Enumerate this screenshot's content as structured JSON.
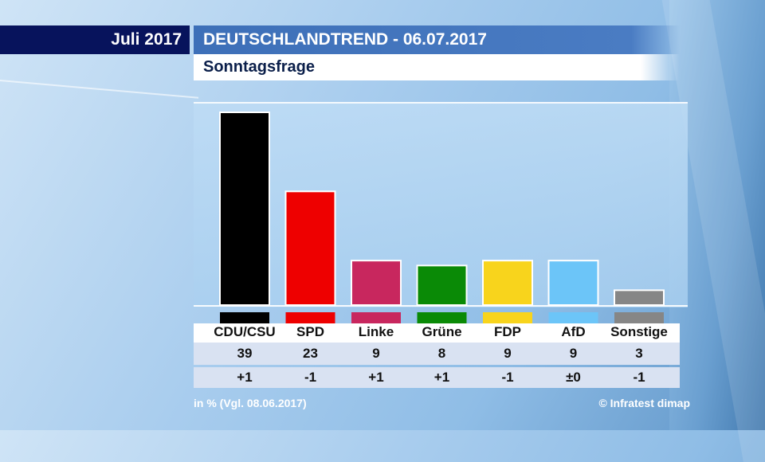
{
  "header": {
    "date": "Juli 2017",
    "title": "DEUTSCHLANDTREND - 06.07.2017",
    "subtitle": "Sonntagsfrage"
  },
  "chart_data": {
    "type": "bar",
    "title": "Sonntagsfrage",
    "categories": [
      "CDU/CSU",
      "SPD",
      "Linke",
      "Grüne",
      "FDP",
      "AfD",
      "Sonstige"
    ],
    "values": [
      39,
      23,
      9,
      8,
      9,
      9,
      3
    ],
    "changes": [
      "+1",
      "-1",
      "+1",
      "+1",
      "-1",
      "±0",
      "-1"
    ],
    "colors": [
      "#000000",
      "#ee0000",
      "#c8275e",
      "#0a8a06",
      "#f8d41c",
      "#6cc5f8",
      "#868686"
    ],
    "ylabel": "in %",
    "ylim": [
      0,
      42
    ]
  },
  "footer": {
    "note": "in % (Vgl. 08.06.2017)",
    "source": "© Infratest dimap"
  }
}
